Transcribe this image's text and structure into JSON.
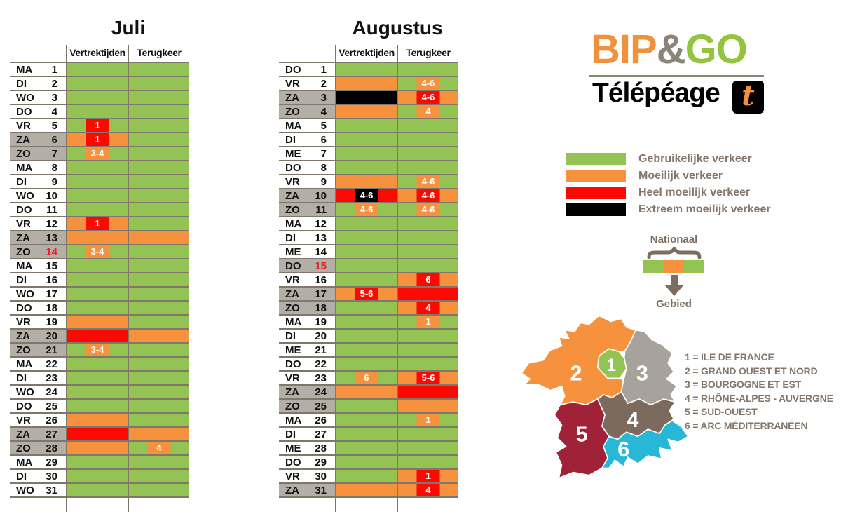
{
  "palette": {
    "green": "#92c353",
    "orange": "#f6913d",
    "red": "#fb0a04",
    "black": "#000000",
    "label_gray": "#b3aea6"
  },
  "logo": {
    "bip": "BIP",
    "amp": "&",
    "go": "GO",
    "subtitle": "Télépéage",
    "badge_letter": "t",
    "bip_color": "#f0913b",
    "amp_color": "#8c8478",
    "go_color": "#94c33e",
    "badge_letter_color": "#f0913b"
  },
  "legend": {
    "items": [
      {
        "label": "Gebruikelijke verkeer",
        "color": "#92c353"
      },
      {
        "label": "Moeilijk verkeer",
        "color": "#f6913d"
      },
      {
        "label": "Heel moeilijk verkeer",
        "color": "#fb0a04"
      },
      {
        "label": "Extreem moeilijk verkeer",
        "color": "#000000"
      }
    ]
  },
  "diagram": {
    "top_label": "Nationaal",
    "bottom_label": "Gebied",
    "bar_segments": [
      "green",
      "orange",
      "green"
    ]
  },
  "regions": [
    {
      "num": "1",
      "name": "ILE DE FRANCE",
      "label": "1 = ILE DE FRANCE",
      "color": "#92c353"
    },
    {
      "num": "2",
      "name": "GRAND OUEST ET NORD",
      "label": "2 = GRAND OUEST ET NORD",
      "color": "#f6913d"
    },
    {
      "num": "3",
      "name": "BOURGOGNE ET EST",
      "label": "3 = BOURGOGNE ET EST",
      "color": "#a7a29b"
    },
    {
      "num": "4",
      "name": "RHÔNE-ALPES - AUVERGNE",
      "label": "4 = RHÔNE-ALPES - AUVERGNE",
      "color": "#7d6a5e"
    },
    {
      "num": "5",
      "name": "SUD-OUEST",
      "label": "5 = SUD-OUEST",
      "color": "#a02238"
    },
    {
      "num": "6",
      "name": "ARC MÉDITERRANÉEN",
      "label": "6 = ARC MÉDITERRANÉEN",
      "color": "#28b7d7"
    }
  ],
  "chart_data": {
    "type": "heatmap",
    "color_scale": {
      "green": "Gebruikelijke verkeer",
      "orange": "Moeilijk verkeer",
      "red": "Heel moeilijk verkeer",
      "black": "Extreem moeilijk verkeer"
    },
    "calendars": [
      {
        "title": "Juli",
        "col_departure": "Vertrektijden",
        "col_return": "Terugkeer",
        "rows": [
          {
            "d": "MA",
            "n": "1",
            "dep": [
              "green"
            ],
            "ret": [
              "green"
            ]
          },
          {
            "d": "DI",
            "n": "2",
            "dep": [
              "green"
            ],
            "ret": [
              "green"
            ]
          },
          {
            "d": "WO",
            "n": "3",
            "dep": [
              "green"
            ],
            "ret": [
              "green"
            ]
          },
          {
            "d": "DO",
            "n": "4",
            "dep": [
              "green"
            ],
            "ret": [
              "green"
            ]
          },
          {
            "d": "VR",
            "n": "5",
            "dep": [
              "green",
              "1",
              "red"
            ],
            "ret": [
              "green"
            ]
          },
          {
            "d": "ZA",
            "n": "6",
            "g": true,
            "dep": [
              "orange",
              "1",
              "red"
            ],
            "ret": [
              "green"
            ]
          },
          {
            "d": "ZO",
            "n": "7",
            "g": true,
            "dep": [
              "green",
              "3-4",
              "orange"
            ],
            "ret": [
              "green"
            ]
          },
          {
            "d": "MA",
            "n": "8",
            "dep": [
              "green"
            ],
            "ret": [
              "green"
            ]
          },
          {
            "d": "DI",
            "n": "9",
            "dep": [
              "green"
            ],
            "ret": [
              "green"
            ]
          },
          {
            "d": "WO",
            "n": "10",
            "dep": [
              "green"
            ],
            "ret": [
              "green"
            ]
          },
          {
            "d": "DO",
            "n": "11",
            "dep": [
              "green"
            ],
            "ret": [
              "green"
            ]
          },
          {
            "d": "VR",
            "n": "12",
            "dep": [
              "orange",
              "1",
              "red"
            ],
            "ret": [
              "green"
            ]
          },
          {
            "d": "ZA",
            "n": "13",
            "g": true,
            "dep": [
              "orange"
            ],
            "ret": [
              "orange"
            ]
          },
          {
            "d": "ZO",
            "n": "14",
            "g": true,
            "hr": true,
            "dep": [
              "green",
              "3-4",
              "orange"
            ],
            "ret": [
              "green"
            ]
          },
          {
            "d": "MA",
            "n": "15",
            "dep": [
              "green"
            ],
            "ret": [
              "green"
            ]
          },
          {
            "d": "DI",
            "n": "16",
            "dep": [
              "green"
            ],
            "ret": [
              "green"
            ]
          },
          {
            "d": "WO",
            "n": "17",
            "dep": [
              "green"
            ],
            "ret": [
              "green"
            ]
          },
          {
            "d": "DO",
            "n": "18",
            "dep": [
              "green"
            ],
            "ret": [
              "green"
            ]
          },
          {
            "d": "VR",
            "n": "19",
            "dep": [
              "orange"
            ],
            "ret": [
              "green"
            ]
          },
          {
            "d": "ZA",
            "n": "20",
            "g": true,
            "dep": [
              "red"
            ],
            "ret": [
              "orange"
            ]
          },
          {
            "d": "ZO",
            "n": "21",
            "g": true,
            "dep": [
              "green",
              "3-4",
              "orange"
            ],
            "ret": [
              "green"
            ]
          },
          {
            "d": "MA",
            "n": "22",
            "dep": [
              "green"
            ],
            "ret": [
              "green"
            ]
          },
          {
            "d": "DI",
            "n": "23",
            "dep": [
              "green"
            ],
            "ret": [
              "green"
            ]
          },
          {
            "d": "WO",
            "n": "24",
            "dep": [
              "green"
            ],
            "ret": [
              "green"
            ]
          },
          {
            "d": "DO",
            "n": "25",
            "dep": [
              "green"
            ],
            "ret": [
              "green"
            ]
          },
          {
            "d": "VR",
            "n": "26",
            "dep": [
              "orange"
            ],
            "ret": [
              "green"
            ]
          },
          {
            "d": "ZA",
            "n": "27",
            "g": true,
            "dep": [
              "red"
            ],
            "ret": [
              "orange"
            ]
          },
          {
            "d": "ZO",
            "n": "28",
            "g": true,
            "dep": [
              "orange"
            ],
            "ret": [
              "green",
              "4",
              "orange"
            ]
          },
          {
            "d": "MA",
            "n": "29",
            "dep": [
              "green"
            ],
            "ret": [
              "green"
            ]
          },
          {
            "d": "DI",
            "n": "30",
            "dep": [
              "green"
            ],
            "ret": [
              "green"
            ]
          },
          {
            "d": "WO",
            "n": "31",
            "dep": [
              "green"
            ],
            "ret": [
              "green"
            ]
          }
        ]
      },
      {
        "title": "Augustus",
        "col_departure": "Vertrektijden",
        "col_return": "Terugkeer",
        "rows": [
          {
            "d": "DO",
            "n": "1",
            "dep": [
              "green"
            ],
            "ret": [
              "green"
            ]
          },
          {
            "d": "VR",
            "n": "2",
            "dep": [
              "orange"
            ],
            "ret": [
              "green",
              "4-6",
              "orange"
            ]
          },
          {
            "d": "ZA",
            "n": "3",
            "g": true,
            "dep": [
              "black"
            ],
            "ret": [
              "orange",
              "4-6",
              "red"
            ]
          },
          {
            "d": "ZO",
            "n": "4",
            "g": true,
            "dep": [
              "orange"
            ],
            "ret": [
              "green",
              "4",
              "orange"
            ]
          },
          {
            "d": "MA",
            "n": "5",
            "dep": [
              "green"
            ],
            "ret": [
              "green"
            ]
          },
          {
            "d": "DI",
            "n": "6",
            "dep": [
              "green"
            ],
            "ret": [
              "green"
            ]
          },
          {
            "d": "ME",
            "n": "7",
            "dep": [
              "green"
            ],
            "ret": [
              "green"
            ]
          },
          {
            "d": "DO",
            "n": "8",
            "dep": [
              "green"
            ],
            "ret": [
              "green"
            ]
          },
          {
            "d": "VR",
            "n": "9",
            "dep": [
              "orange"
            ],
            "ret": [
              "green",
              "4-6",
              "orange"
            ]
          },
          {
            "d": "ZA",
            "n": "10",
            "g": true,
            "dep": [
              "red",
              "4-6",
              "black"
            ],
            "ret": [
              "orange",
              "4-6",
              "red"
            ]
          },
          {
            "d": "ZO",
            "n": "11",
            "g": true,
            "dep": [
              "green",
              "4-6",
              "orange"
            ],
            "ret": [
              "green",
              "4-6",
              "orange"
            ]
          },
          {
            "d": "MA",
            "n": "12",
            "dep": [
              "green"
            ],
            "ret": [
              "green"
            ]
          },
          {
            "d": "DI",
            "n": "13",
            "dep": [
              "green"
            ],
            "ret": [
              "green"
            ]
          },
          {
            "d": "ME",
            "n": "14",
            "dep": [
              "green"
            ],
            "ret": [
              "green"
            ]
          },
          {
            "d": "DO",
            "n": "15",
            "g": true,
            "hr": true,
            "dep": [
              "green"
            ],
            "ret": [
              "green"
            ]
          },
          {
            "d": "VR",
            "n": "16",
            "dep": [
              "green"
            ],
            "ret": [
              "orange",
              "6",
              "red"
            ]
          },
          {
            "d": "ZA",
            "n": "17",
            "g": true,
            "dep": [
              "orange",
              "5-6",
              "red"
            ],
            "ret": [
              "red"
            ]
          },
          {
            "d": "ZO",
            "n": "18",
            "g": true,
            "dep": [
              "green"
            ],
            "ret": [
              "orange",
              "4",
              "red"
            ]
          },
          {
            "d": "MA",
            "n": "19",
            "dep": [
              "green"
            ],
            "ret": [
              "green",
              "1",
              "orange"
            ]
          },
          {
            "d": "DI",
            "n": "20",
            "dep": [
              "green"
            ],
            "ret": [
              "green"
            ]
          },
          {
            "d": "ME",
            "n": "21",
            "dep": [
              "green"
            ],
            "ret": [
              "green"
            ]
          },
          {
            "d": "DO",
            "n": "22",
            "dep": [
              "green"
            ],
            "ret": [
              "green"
            ]
          },
          {
            "d": "VR",
            "n": "23",
            "dep": [
              "green",
              "6",
              "orange"
            ],
            "ret": [
              "orange",
              "5-6",
              "red"
            ]
          },
          {
            "d": "ZA",
            "n": "24",
            "g": true,
            "dep": [
              "orange"
            ],
            "ret": [
              "red"
            ]
          },
          {
            "d": "ZO",
            "n": "25",
            "g": true,
            "dep": [
              "green"
            ],
            "ret": [
              "orange"
            ]
          },
          {
            "d": "MA",
            "n": "26",
            "dep": [
              "green"
            ],
            "ret": [
              "green",
              "1",
              "orange"
            ]
          },
          {
            "d": "DI",
            "n": "27",
            "dep": [
              "green"
            ],
            "ret": [
              "green"
            ]
          },
          {
            "d": "ME",
            "n": "28",
            "dep": [
              "green"
            ],
            "ret": [
              "green"
            ]
          },
          {
            "d": "DO",
            "n": "29",
            "dep": [
              "green"
            ],
            "ret": [
              "green"
            ]
          },
          {
            "d": "VR",
            "n": "30",
            "dep": [
              "green"
            ],
            "ret": [
              "orange",
              "1",
              "red"
            ]
          },
          {
            "d": "ZA",
            "n": "31",
            "g": true,
            "dep": [
              "orange"
            ],
            "ret": [
              "orange",
              "4",
              "red"
            ]
          }
        ]
      }
    ]
  }
}
